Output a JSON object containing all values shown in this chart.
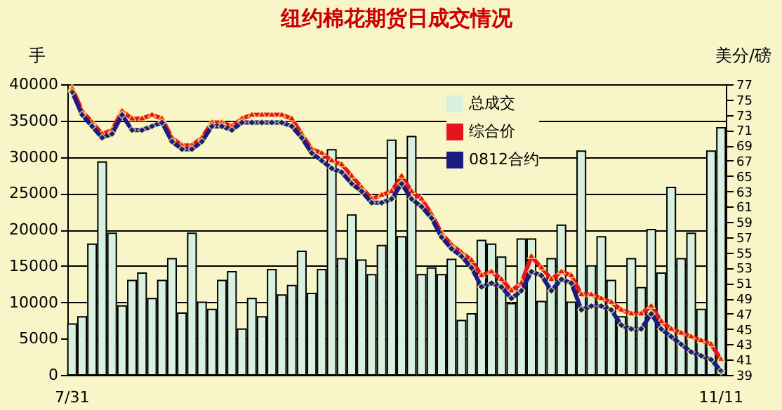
{
  "chart_data": {
    "type": "bar",
    "title": "纽约棉花期货日成交情况",
    "ylabel": "手",
    "y2label": "美分/磅",
    "categories": [
      "7/31",
      null,
      null,
      null,
      null,
      null,
      null,
      null,
      null,
      null,
      null,
      null,
      null,
      null,
      null,
      null,
      null,
      null,
      null,
      null,
      null,
      null,
      null,
      null,
      null,
      null,
      null,
      null,
      null,
      null,
      null,
      null,
      null,
      null,
      null,
      null,
      null,
      null,
      null,
      null,
      null,
      null,
      null,
      null,
      null,
      null,
      null,
      null,
      null,
      null,
      null,
      null,
      null,
      null,
      null,
      null,
      null,
      null,
      null,
      null,
      null,
      null,
      null,
      null,
      null,
      "11/11"
    ],
    "series": [
      {
        "name": "总成交",
        "color": "#d8f0e0",
        "values": [
          7000,
          8000,
          18000,
          29300,
          19500,
          9500,
          13000,
          14000,
          10500,
          13000,
          16000,
          8500,
          19500,
          10000,
          9000,
          13000,
          14200,
          6300,
          10500,
          8000,
          14500,
          11000,
          12300,
          17000,
          11200,
          14500,
          31000,
          16000,
          22000,
          15800,
          13800,
          17800,
          32300,
          19000,
          32800,
          13800,
          14700,
          13800,
          15900,
          7500,
          8400,
          18500,
          18000,
          16200,
          9800,
          18700,
          18700,
          10100,
          16000,
          20600,
          10000,
          30800,
          15000,
          19000,
          13000,
          8000,
          16000,
          12000,
          20000,
          14000,
          25800,
          16000,
          19500,
          9000,
          30800,
          34000
        ]
      },
      {
        "name": "综合价",
        "type": "line",
        "axis": "y2",
        "color": "#e8141c",
        "marker": "triangle",
        "values": [
          76.5,
          73.5,
          72,
          70.5,
          71,
          73.5,
          72.5,
          72.5,
          73,
          72.5,
          70,
          69,
          69,
          70,
          72,
          72,
          71.5,
          72.5,
          73,
          73,
          73,
          73,
          72.5,
          70.5,
          68.5,
          68,
          67,
          66.5,
          65,
          63.5,
          62,
          62.5,
          63,
          65,
          63,
          62,
          60,
          57.5,
          56,
          55,
          54,
          52,
          52.5,
          51.5,
          50,
          51,
          54.5,
          53,
          51.5,
          52.5,
          52,
          49.5,
          49.5,
          49,
          48.5,
          47.5,
          47,
          47,
          48,
          46,
          45,
          44.5,
          44,
          43.5,
          43,
          41
        ]
      },
      {
        "name": "0812合约",
        "type": "line",
        "axis": "y2",
        "color": "#1c1c80",
        "marker": "diamond",
        "values": [
          76,
          73,
          71.5,
          70,
          70.5,
          73,
          71,
          71,
          71.5,
          72,
          69.5,
          68.5,
          68.5,
          69.5,
          71.5,
          71.5,
          71,
          72,
          72,
          72,
          72,
          72,
          71.5,
          70,
          68,
          67,
          66,
          65.5,
          64,
          63,
          61.5,
          61.5,
          62,
          64,
          62,
          61,
          59.5,
          57,
          55.5,
          54.5,
          53,
          50.5,
          51,
          50.5,
          49,
          50,
          52.5,
          52,
          50,
          51.5,
          51,
          47.5,
          48,
          48,
          47.5,
          45.5,
          45,
          45,
          47,
          45,
          44,
          43,
          42,
          41.5,
          41,
          39.5
        ]
      }
    ],
    "ylim": [
      0,
      40000
    ],
    "yticks": [
      0,
      5000,
      10000,
      15000,
      20000,
      25000,
      30000,
      35000,
      40000
    ],
    "y2lim": [
      39,
      77
    ],
    "y2ticks": [
      39,
      41,
      43,
      45,
      47,
      49,
      51,
      53,
      55,
      57,
      59,
      61,
      63,
      65,
      67,
      69,
      71,
      73,
      75,
      77
    ],
    "grid": "y",
    "legend": "top"
  }
}
